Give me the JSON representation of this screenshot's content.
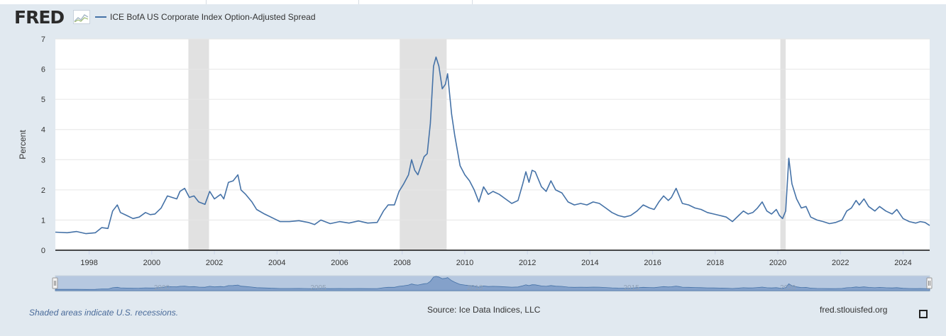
{
  "header": {
    "logo_text": "FRED",
    "logo_icon": "line-chart-icon"
  },
  "legend": {
    "series_name": "ICE BofA US Corporate Index Option-Adjusted Spread",
    "color": "#4572a7"
  },
  "chart_data": {
    "type": "line",
    "ylabel": "Percent",
    "ylim": [
      0,
      7
    ],
    "yticks": [
      0,
      1,
      2,
      3,
      4,
      5,
      6,
      7
    ],
    "xlim": [
      1996.92,
      2024.85
    ],
    "xticks": [
      "1998",
      "2000",
      "2002",
      "2004",
      "2006",
      "2008",
      "2010",
      "2012",
      "2014",
      "2016",
      "2018",
      "2020",
      "2022",
      "2024"
    ],
    "grid": true,
    "line_color": "#4572a7",
    "recessions": [
      [
        2001.17,
        2001.83
      ],
      [
        2007.92,
        2009.42
      ],
      [
        2020.08,
        2020.25
      ]
    ],
    "series": [
      {
        "name": "ICE BofA US Corporate Index Option-Adjusted Spread",
        "points": [
          [
            1996.92,
            0.6
          ],
          [
            1997.3,
            0.58
          ],
          [
            1997.6,
            0.62
          ],
          [
            1997.9,
            0.55
          ],
          [
            1998.2,
            0.58
          ],
          [
            1998.4,
            0.75
          ],
          [
            1998.6,
            0.72
          ],
          [
            1998.75,
            1.3
          ],
          [
            1998.9,
            1.5
          ],
          [
            1999.0,
            1.25
          ],
          [
            1999.2,
            1.15
          ],
          [
            1999.4,
            1.05
          ],
          [
            1999.6,
            1.1
          ],
          [
            1999.8,
            1.25
          ],
          [
            1999.95,
            1.18
          ],
          [
            2000.1,
            1.2
          ],
          [
            2000.3,
            1.4
          ],
          [
            2000.5,
            1.8
          ],
          [
            2000.65,
            1.75
          ],
          [
            2000.8,
            1.7
          ],
          [
            2000.9,
            1.95
          ],
          [
            2001.05,
            2.05
          ],
          [
            2001.2,
            1.75
          ],
          [
            2001.35,
            1.8
          ],
          [
            2001.5,
            1.6
          ],
          [
            2001.7,
            1.52
          ],
          [
            2001.85,
            1.95
          ],
          [
            2002.0,
            1.7
          ],
          [
            2002.2,
            1.85
          ],
          [
            2002.3,
            1.7
          ],
          [
            2002.45,
            2.25
          ],
          [
            2002.6,
            2.3
          ],
          [
            2002.75,
            2.5
          ],
          [
            2002.85,
            2.0
          ],
          [
            2003.0,
            1.85
          ],
          [
            2003.2,
            1.6
          ],
          [
            2003.35,
            1.35
          ],
          [
            2003.6,
            1.2
          ],
          [
            2003.9,
            1.05
          ],
          [
            2004.1,
            0.95
          ],
          [
            2004.4,
            0.95
          ],
          [
            2004.7,
            0.98
          ],
          [
            2005.0,
            0.92
          ],
          [
            2005.2,
            0.85
          ],
          [
            2005.4,
            1.0
          ],
          [
            2005.7,
            0.88
          ],
          [
            2006.0,
            0.95
          ],
          [
            2006.3,
            0.9
          ],
          [
            2006.6,
            0.97
          ],
          [
            2006.9,
            0.9
          ],
          [
            2007.2,
            0.92
          ],
          [
            2007.4,
            1.3
          ],
          [
            2007.55,
            1.5
          ],
          [
            2007.75,
            1.5
          ],
          [
            2007.9,
            1.95
          ],
          [
            2008.05,
            2.2
          ],
          [
            2008.2,
            2.5
          ],
          [
            2008.3,
            3.0
          ],
          [
            2008.4,
            2.65
          ],
          [
            2008.5,
            2.5
          ],
          [
            2008.7,
            3.1
          ],
          [
            2008.8,
            3.2
          ],
          [
            2008.9,
            4.2
          ],
          [
            2009.0,
            6.1
          ],
          [
            2009.08,
            6.4
          ],
          [
            2009.17,
            6.1
          ],
          [
            2009.28,
            5.35
          ],
          [
            2009.38,
            5.5
          ],
          [
            2009.45,
            5.85
          ],
          [
            2009.58,
            4.5
          ],
          [
            2009.68,
            3.8
          ],
          [
            2009.85,
            2.8
          ],
          [
            2010.0,
            2.5
          ],
          [
            2010.15,
            2.3
          ],
          [
            2010.3,
            2.0
          ],
          [
            2010.45,
            1.6
          ],
          [
            2010.6,
            2.1
          ],
          [
            2010.75,
            1.85
          ],
          [
            2010.9,
            1.95
          ],
          [
            2011.1,
            1.85
          ],
          [
            2011.3,
            1.7
          ],
          [
            2011.5,
            1.55
          ],
          [
            2011.7,
            1.65
          ],
          [
            2011.85,
            2.2
          ],
          [
            2011.95,
            2.6
          ],
          [
            2012.05,
            2.25
          ],
          [
            2012.15,
            2.65
          ],
          [
            2012.25,
            2.6
          ],
          [
            2012.45,
            2.1
          ],
          [
            2012.6,
            1.95
          ],
          [
            2012.75,
            2.3
          ],
          [
            2012.9,
            2.0
          ],
          [
            2013.1,
            1.9
          ],
          [
            2013.3,
            1.6
          ],
          [
            2013.5,
            1.5
          ],
          [
            2013.7,
            1.55
          ],
          [
            2013.9,
            1.5
          ],
          [
            2014.1,
            1.6
          ],
          [
            2014.3,
            1.55
          ],
          [
            2014.5,
            1.4
          ],
          [
            2014.7,
            1.25
          ],
          [
            2014.9,
            1.15
          ],
          [
            2015.1,
            1.1
          ],
          [
            2015.3,
            1.15
          ],
          [
            2015.5,
            1.3
          ],
          [
            2015.7,
            1.5
          ],
          [
            2015.9,
            1.4
          ],
          [
            2016.05,
            1.35
          ],
          [
            2016.2,
            1.6
          ],
          [
            2016.35,
            1.8
          ],
          [
            2016.5,
            1.65
          ],
          [
            2016.6,
            1.75
          ],
          [
            2016.75,
            2.05
          ],
          [
            2016.85,
            1.8
          ],
          [
            2016.95,
            1.55
          ],
          [
            2017.15,
            1.5
          ],
          [
            2017.35,
            1.4
          ],
          [
            2017.55,
            1.35
          ],
          [
            2017.75,
            1.25
          ],
          [
            2017.95,
            1.2
          ],
          [
            2018.15,
            1.15
          ],
          [
            2018.35,
            1.1
          ],
          [
            2018.55,
            0.95
          ],
          [
            2018.75,
            1.15
          ],
          [
            2018.9,
            1.3
          ],
          [
            2019.05,
            1.2
          ],
          [
            2019.2,
            1.25
          ],
          [
            2019.35,
            1.4
          ],
          [
            2019.5,
            1.6
          ],
          [
            2019.65,
            1.3
          ],
          [
            2019.8,
            1.2
          ],
          [
            2019.95,
            1.35
          ],
          [
            2020.05,
            1.15
          ],
          [
            2020.15,
            1.05
          ],
          [
            2020.25,
            1.3
          ],
          [
            2020.35,
            3.05
          ],
          [
            2020.45,
            2.2
          ],
          [
            2020.6,
            1.7
          ],
          [
            2020.75,
            1.4
          ],
          [
            2020.9,
            1.45
          ],
          [
            2021.05,
            1.1
          ],
          [
            2021.25,
            1.0
          ],
          [
            2021.45,
            0.95
          ],
          [
            2021.65,
            0.88
          ],
          [
            2021.85,
            0.92
          ],
          [
            2022.05,
            1.0
          ],
          [
            2022.2,
            1.3
          ],
          [
            2022.35,
            1.4
          ],
          [
            2022.5,
            1.65
          ],
          [
            2022.6,
            1.5
          ],
          [
            2022.75,
            1.7
          ],
          [
            2022.9,
            1.45
          ],
          [
            2023.1,
            1.3
          ],
          [
            2023.25,
            1.45
          ],
          [
            2023.45,
            1.3
          ],
          [
            2023.65,
            1.2
          ],
          [
            2023.8,
            1.35
          ],
          [
            2024.0,
            1.05
          ],
          [
            2024.2,
            0.95
          ],
          [
            2024.4,
            0.9
          ],
          [
            2024.55,
            0.95
          ],
          [
            2024.7,
            0.92
          ],
          [
            2024.85,
            0.82
          ]
        ]
      }
    ],
    "navigator": {
      "labels": [
        "2000",
        "2005",
        "2010",
        "2015",
        "2020"
      ]
    }
  },
  "footer": {
    "recession_note": "Shaded areas indicate U.S. recessions.",
    "source": "Source: Ice Data Indices, LLC",
    "url": "fred.stlouisfed.org",
    "fullscreen_icon": "fullscreen-icon"
  }
}
